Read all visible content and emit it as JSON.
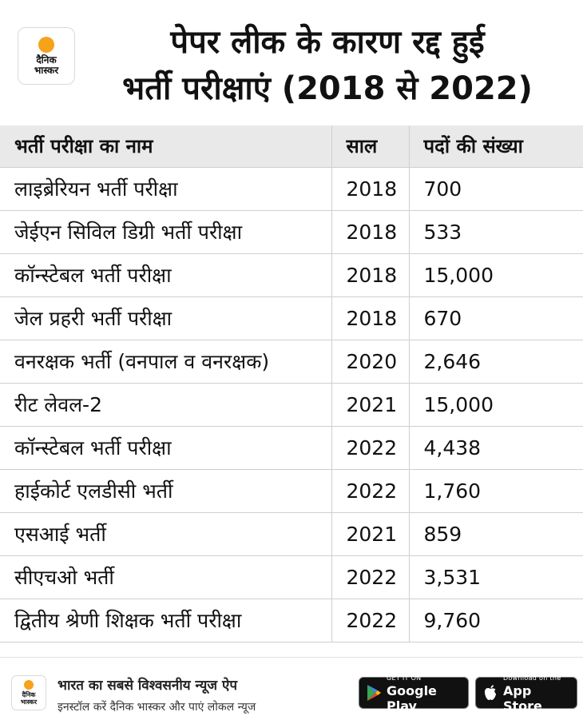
{
  "header": {
    "logo": {
      "line1": "दैनिक",
      "line2": "भास्कर"
    },
    "title_line1": "पेपर लीक के कारण रद्द हुई",
    "title_line2": "भर्ती परीक्षाएं (2018 से 2022)"
  },
  "table": {
    "headers": [
      "भर्ती परीक्षा का नाम",
      "साल",
      "पदों की संख्या"
    ],
    "rows": [
      [
        "लाइब्रेरियन भर्ती परीक्षा",
        "2018",
        "700"
      ],
      [
        "जेईएन सिविल डिग्री भर्ती परीक्षा",
        "2018",
        "533"
      ],
      [
        "कॉन्स्टेबल भर्ती परीक्षा",
        "2018",
        "15,000"
      ],
      [
        "जेल प्रहरी भर्ती परीक्षा",
        "2018",
        "670"
      ],
      [
        "वनरक्षक भर्ती (वनपाल व वनरक्षक)",
        "2020",
        "2,646"
      ],
      [
        "रीट लेवल-2",
        "2021",
        "15,000"
      ],
      [
        "कॉन्स्टेबल भर्ती परीक्षा",
        "2022",
        "4,438"
      ],
      [
        "हाईकोर्ट एलडीसी भर्ती",
        "2022",
        "1,760"
      ],
      [
        "एसआई भर्ती",
        "2021",
        "859"
      ],
      [
        "सीएचओ भर्ती",
        "2022",
        "3,531"
      ],
      [
        "द्वितीय श्रेणी शिक्षक भर्ती परीक्षा",
        "2022",
        "9,760"
      ]
    ]
  },
  "footer": {
    "logo": {
      "line1": "दैनिक",
      "line2": "भास्कर"
    },
    "tagline": "भारत का सबसे विश्वसनीय न्यूज ऐप",
    "subtagline": "इनस्टॉल करें दैनिक भास्कर और पाएं लोकल न्यूज",
    "google_play": {
      "small": "GET IT ON",
      "big": "Google Play",
      "icon": "google-play-icon"
    },
    "app_store": {
      "small": "Download on the",
      "big": "App Store",
      "icon": "apple-icon"
    }
  }
}
